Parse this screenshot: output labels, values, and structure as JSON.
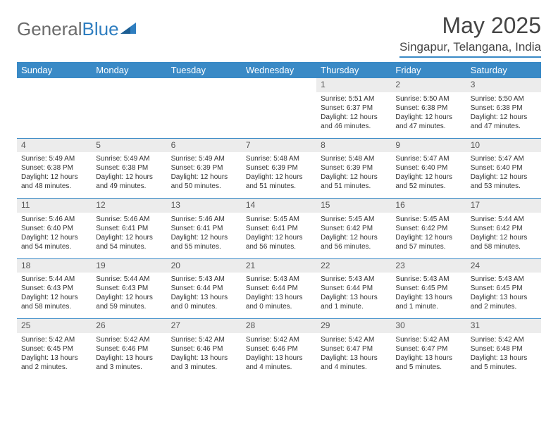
{
  "brand": {
    "part1": "General",
    "part2": "Blue"
  },
  "title": "May 2025",
  "location": "Singapur, Telangana, India",
  "colors": {
    "header_bg": "#3a8ac6",
    "header_fg": "#ffffff",
    "daynum_bg": "#ececec",
    "text": "#333333",
    "logo_gray": "#6b6b6b",
    "logo_blue": "#2f7ec0"
  },
  "day_headers": [
    "Sunday",
    "Monday",
    "Tuesday",
    "Wednesday",
    "Thursday",
    "Friday",
    "Saturday"
  ],
  "weeks": [
    [
      {
        "n": "",
        "sr": "",
        "ss": "",
        "dl": ""
      },
      {
        "n": "",
        "sr": "",
        "ss": "",
        "dl": ""
      },
      {
        "n": "",
        "sr": "",
        "ss": "",
        "dl": ""
      },
      {
        "n": "",
        "sr": "",
        "ss": "",
        "dl": ""
      },
      {
        "n": "1",
        "sr": "Sunrise: 5:51 AM",
        "ss": "Sunset: 6:37 PM",
        "dl": "Daylight: 12 hours and 46 minutes."
      },
      {
        "n": "2",
        "sr": "Sunrise: 5:50 AM",
        "ss": "Sunset: 6:38 PM",
        "dl": "Daylight: 12 hours and 47 minutes."
      },
      {
        "n": "3",
        "sr": "Sunrise: 5:50 AM",
        "ss": "Sunset: 6:38 PM",
        "dl": "Daylight: 12 hours and 47 minutes."
      }
    ],
    [
      {
        "n": "4",
        "sr": "Sunrise: 5:49 AM",
        "ss": "Sunset: 6:38 PM",
        "dl": "Daylight: 12 hours and 48 minutes."
      },
      {
        "n": "5",
        "sr": "Sunrise: 5:49 AM",
        "ss": "Sunset: 6:38 PM",
        "dl": "Daylight: 12 hours and 49 minutes."
      },
      {
        "n": "6",
        "sr": "Sunrise: 5:49 AM",
        "ss": "Sunset: 6:39 PM",
        "dl": "Daylight: 12 hours and 50 minutes."
      },
      {
        "n": "7",
        "sr": "Sunrise: 5:48 AM",
        "ss": "Sunset: 6:39 PM",
        "dl": "Daylight: 12 hours and 51 minutes."
      },
      {
        "n": "8",
        "sr": "Sunrise: 5:48 AM",
        "ss": "Sunset: 6:39 PM",
        "dl": "Daylight: 12 hours and 51 minutes."
      },
      {
        "n": "9",
        "sr": "Sunrise: 5:47 AM",
        "ss": "Sunset: 6:40 PM",
        "dl": "Daylight: 12 hours and 52 minutes."
      },
      {
        "n": "10",
        "sr": "Sunrise: 5:47 AM",
        "ss": "Sunset: 6:40 PM",
        "dl": "Daylight: 12 hours and 53 minutes."
      }
    ],
    [
      {
        "n": "11",
        "sr": "Sunrise: 5:46 AM",
        "ss": "Sunset: 6:40 PM",
        "dl": "Daylight: 12 hours and 54 minutes."
      },
      {
        "n": "12",
        "sr": "Sunrise: 5:46 AM",
        "ss": "Sunset: 6:41 PM",
        "dl": "Daylight: 12 hours and 54 minutes."
      },
      {
        "n": "13",
        "sr": "Sunrise: 5:46 AM",
        "ss": "Sunset: 6:41 PM",
        "dl": "Daylight: 12 hours and 55 minutes."
      },
      {
        "n": "14",
        "sr": "Sunrise: 5:45 AM",
        "ss": "Sunset: 6:41 PM",
        "dl": "Daylight: 12 hours and 56 minutes."
      },
      {
        "n": "15",
        "sr": "Sunrise: 5:45 AM",
        "ss": "Sunset: 6:42 PM",
        "dl": "Daylight: 12 hours and 56 minutes."
      },
      {
        "n": "16",
        "sr": "Sunrise: 5:45 AM",
        "ss": "Sunset: 6:42 PM",
        "dl": "Daylight: 12 hours and 57 minutes."
      },
      {
        "n": "17",
        "sr": "Sunrise: 5:44 AM",
        "ss": "Sunset: 6:42 PM",
        "dl": "Daylight: 12 hours and 58 minutes."
      }
    ],
    [
      {
        "n": "18",
        "sr": "Sunrise: 5:44 AM",
        "ss": "Sunset: 6:43 PM",
        "dl": "Daylight: 12 hours and 58 minutes."
      },
      {
        "n": "19",
        "sr": "Sunrise: 5:44 AM",
        "ss": "Sunset: 6:43 PM",
        "dl": "Daylight: 12 hours and 59 minutes."
      },
      {
        "n": "20",
        "sr": "Sunrise: 5:43 AM",
        "ss": "Sunset: 6:44 PM",
        "dl": "Daylight: 13 hours and 0 minutes."
      },
      {
        "n": "21",
        "sr": "Sunrise: 5:43 AM",
        "ss": "Sunset: 6:44 PM",
        "dl": "Daylight: 13 hours and 0 minutes."
      },
      {
        "n": "22",
        "sr": "Sunrise: 5:43 AM",
        "ss": "Sunset: 6:44 PM",
        "dl": "Daylight: 13 hours and 1 minute."
      },
      {
        "n": "23",
        "sr": "Sunrise: 5:43 AM",
        "ss": "Sunset: 6:45 PM",
        "dl": "Daylight: 13 hours and 1 minute."
      },
      {
        "n": "24",
        "sr": "Sunrise: 5:43 AM",
        "ss": "Sunset: 6:45 PM",
        "dl": "Daylight: 13 hours and 2 minutes."
      }
    ],
    [
      {
        "n": "25",
        "sr": "Sunrise: 5:42 AM",
        "ss": "Sunset: 6:45 PM",
        "dl": "Daylight: 13 hours and 2 minutes."
      },
      {
        "n": "26",
        "sr": "Sunrise: 5:42 AM",
        "ss": "Sunset: 6:46 PM",
        "dl": "Daylight: 13 hours and 3 minutes."
      },
      {
        "n": "27",
        "sr": "Sunrise: 5:42 AM",
        "ss": "Sunset: 6:46 PM",
        "dl": "Daylight: 13 hours and 3 minutes."
      },
      {
        "n": "28",
        "sr": "Sunrise: 5:42 AM",
        "ss": "Sunset: 6:46 PM",
        "dl": "Daylight: 13 hours and 4 minutes."
      },
      {
        "n": "29",
        "sr": "Sunrise: 5:42 AM",
        "ss": "Sunset: 6:47 PM",
        "dl": "Daylight: 13 hours and 4 minutes."
      },
      {
        "n": "30",
        "sr": "Sunrise: 5:42 AM",
        "ss": "Sunset: 6:47 PM",
        "dl": "Daylight: 13 hours and 5 minutes."
      },
      {
        "n": "31",
        "sr": "Sunrise: 5:42 AM",
        "ss": "Sunset: 6:48 PM",
        "dl": "Daylight: 13 hours and 5 minutes."
      }
    ]
  ]
}
